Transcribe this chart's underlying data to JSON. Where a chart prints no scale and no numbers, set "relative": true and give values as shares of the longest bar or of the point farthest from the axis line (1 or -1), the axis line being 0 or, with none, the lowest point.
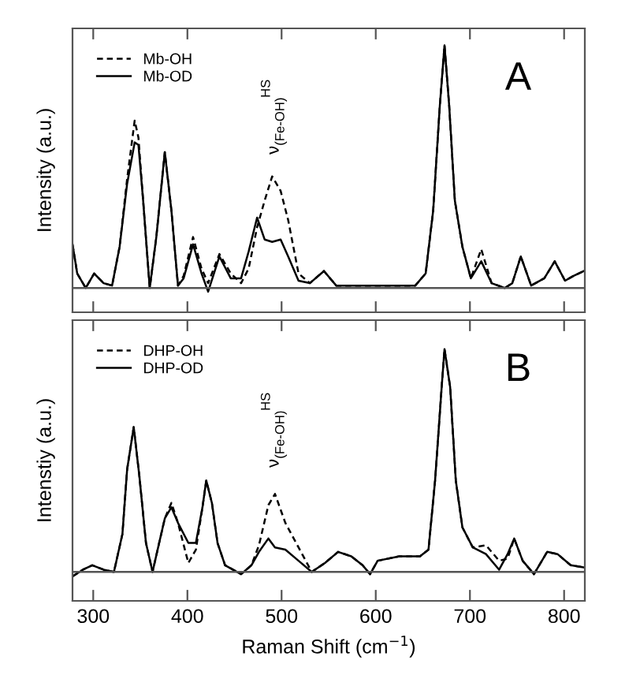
{
  "chart_data": [
    {
      "type": "line",
      "relative": true,
      "ylabel": "Intensity (a.u.)",
      "xlim": [
        278,
        822
      ],
      "xticks": [
        300,
        400,
        500,
        600,
        700,
        800
      ],
      "tick_labels": false,
      "grid": false,
      "legend": "top left",
      "marker": "none",
      "annotations": [
        "A",
        {
          "text": "ν$_{(Fe-OH)}$$^{HS}$",
          "x": 490,
          "y": 0.46
        }
      ],
      "x": [
        278,
        283,
        292,
        301,
        311,
        320,
        328,
        336,
        344,
        348,
        353,
        360,
        367,
        376,
        383,
        390,
        396,
        406,
        415,
        422,
        434,
        446,
        457,
        465,
        474,
        482,
        490,
        499,
        507,
        518,
        530,
        545,
        558,
        591,
        642,
        653,
        661,
        668,
        673,
        678,
        684,
        692,
        701,
        712,
        723,
        737,
        745,
        754,
        765,
        779,
        790,
        801,
        810,
        821
      ],
      "series": [
        {
          "name": "Mb-OH",
          "color": "#000000",
          "line_style": "dashed",
          "values": [
            0.18,
            0.06,
            0,
            0.06,
            0.02,
            0.01,
            0.17,
            0.45,
            0.69,
            0.62,
            0.36,
            0,
            0.21,
            0.56,
            0.32,
            0.01,
            0.05,
            0.21,
            0.08,
            0.02,
            0.14,
            0.06,
            0.02,
            0.08,
            0.25,
            0.36,
            0.46,
            0.4,
            0.28,
            0.06,
            0.02,
            0.07,
            0.01,
            0.01,
            0.01,
            0.06,
            0.32,
            0.75,
            1,
            0.75,
            0.36,
            0.17,
            0.04,
            0.16,
            0.02,
            0,
            0.02,
            0.13,
            0.01,
            0.04,
            0.11,
            0.03,
            0.05,
            0.07
          ]
        },
        {
          "name": "Mb-OD",
          "color": "#000000",
          "line_style": "solid",
          "values": [
            0.18,
            0.06,
            0,
            0.06,
            0.02,
            0.01,
            0.17,
            0.43,
            0.6,
            0.59,
            0.36,
            0,
            0.21,
            0.56,
            0.32,
            0.01,
            0.04,
            0.18,
            0.06,
            -0.015,
            0.13,
            0.04,
            0.04,
            0.15,
            0.29,
            0.2,
            0.19,
            0.2,
            0.13,
            0.03,
            0.02,
            0.07,
            0.01,
            0.01,
            0.01,
            0.06,
            0.32,
            0.75,
            1,
            0.75,
            0.36,
            0.17,
            0.04,
            0.11,
            0.02,
            0,
            0.02,
            0.13,
            0.01,
            0.04,
            0.11,
            0.03,
            0.05,
            0.07
          ]
        }
      ]
    },
    {
      "type": "line",
      "relative": true,
      "ylabel": "Intenstiy (a.u.)",
      "xlabel": "Raman Shift (cm$^{−1}$)",
      "xlim": [
        278,
        822
      ],
      "xticks": [
        300,
        400,
        500,
        600,
        700,
        800
      ],
      "tick_labels": "x",
      "grid": false,
      "legend": "top left",
      "marker": "none",
      "annotations": [
        "B",
        {
          "text": "ν$_{(Fe-OH)}$$^{HS}$",
          "x": 490,
          "y": 0.37
        }
      ],
      "x": [
        278,
        289,
        299,
        311,
        322,
        331,
        336,
        343,
        349,
        356,
        363,
        370,
        376,
        383,
        390,
        401,
        409,
        416,
        420,
        426,
        432,
        440,
        457,
        468,
        476,
        486,
        493,
        504,
        518,
        532,
        546,
        560,
        574,
        586,
        594,
        602,
        625,
        647,
        656,
        663,
        670,
        673,
        679,
        685,
        692,
        703,
        717,
        731,
        740,
        747,
        756,
        768,
        782,
        793,
        807,
        821
      ],
      "series": [
        {
          "name": "DHP-OH",
          "color": "#000000",
          "line_style": "dashed",
          "values": [
            -0.02,
            0.01,
            0.03,
            0.01,
            0,
            0.17,
            0.46,
            0.65,
            0.43,
            0.13,
            0,
            0.13,
            0.24,
            0.31,
            0.22,
            0.04,
            0.1,
            0.29,
            0.41,
            0.31,
            0.13,
            0.03,
            -0.01,
            0.03,
            0.12,
            0.3,
            0.35,
            0.22,
            0.11,
            0,
            0.04,
            0.09,
            0.07,
            0.03,
            -0.01,
            0.05,
            0.07,
            0.07,
            0.1,
            0.41,
            0.83,
            1,
            0.83,
            0.41,
            0.2,
            0.11,
            0.12,
            0.05,
            0.06,
            0.15,
            0.05,
            -0.01,
            0.09,
            0.08,
            0.03,
            0.02
          ]
        },
        {
          "name": "DHP-OD",
          "color": "#000000",
          "line_style": "solid",
          "values": [
            -0.02,
            0.01,
            0.03,
            0.01,
            0,
            0.17,
            0.46,
            0.65,
            0.43,
            0.13,
            0,
            0.13,
            0.24,
            0.29,
            0.22,
            0.13,
            0.13,
            0.29,
            0.41,
            0.31,
            0.13,
            0.03,
            -0.01,
            0.03,
            0.09,
            0.15,
            0.11,
            0.1,
            0.05,
            0,
            0.04,
            0.09,
            0.07,
            0.03,
            -0.01,
            0.05,
            0.07,
            0.07,
            0.1,
            0.41,
            0.83,
            1,
            0.83,
            0.41,
            0.2,
            0.11,
            0.08,
            0.01,
            0.08,
            0.15,
            0.05,
            -0.01,
            0.09,
            0.08,
            0.03,
            0.02
          ]
        }
      ]
    }
  ]
}
